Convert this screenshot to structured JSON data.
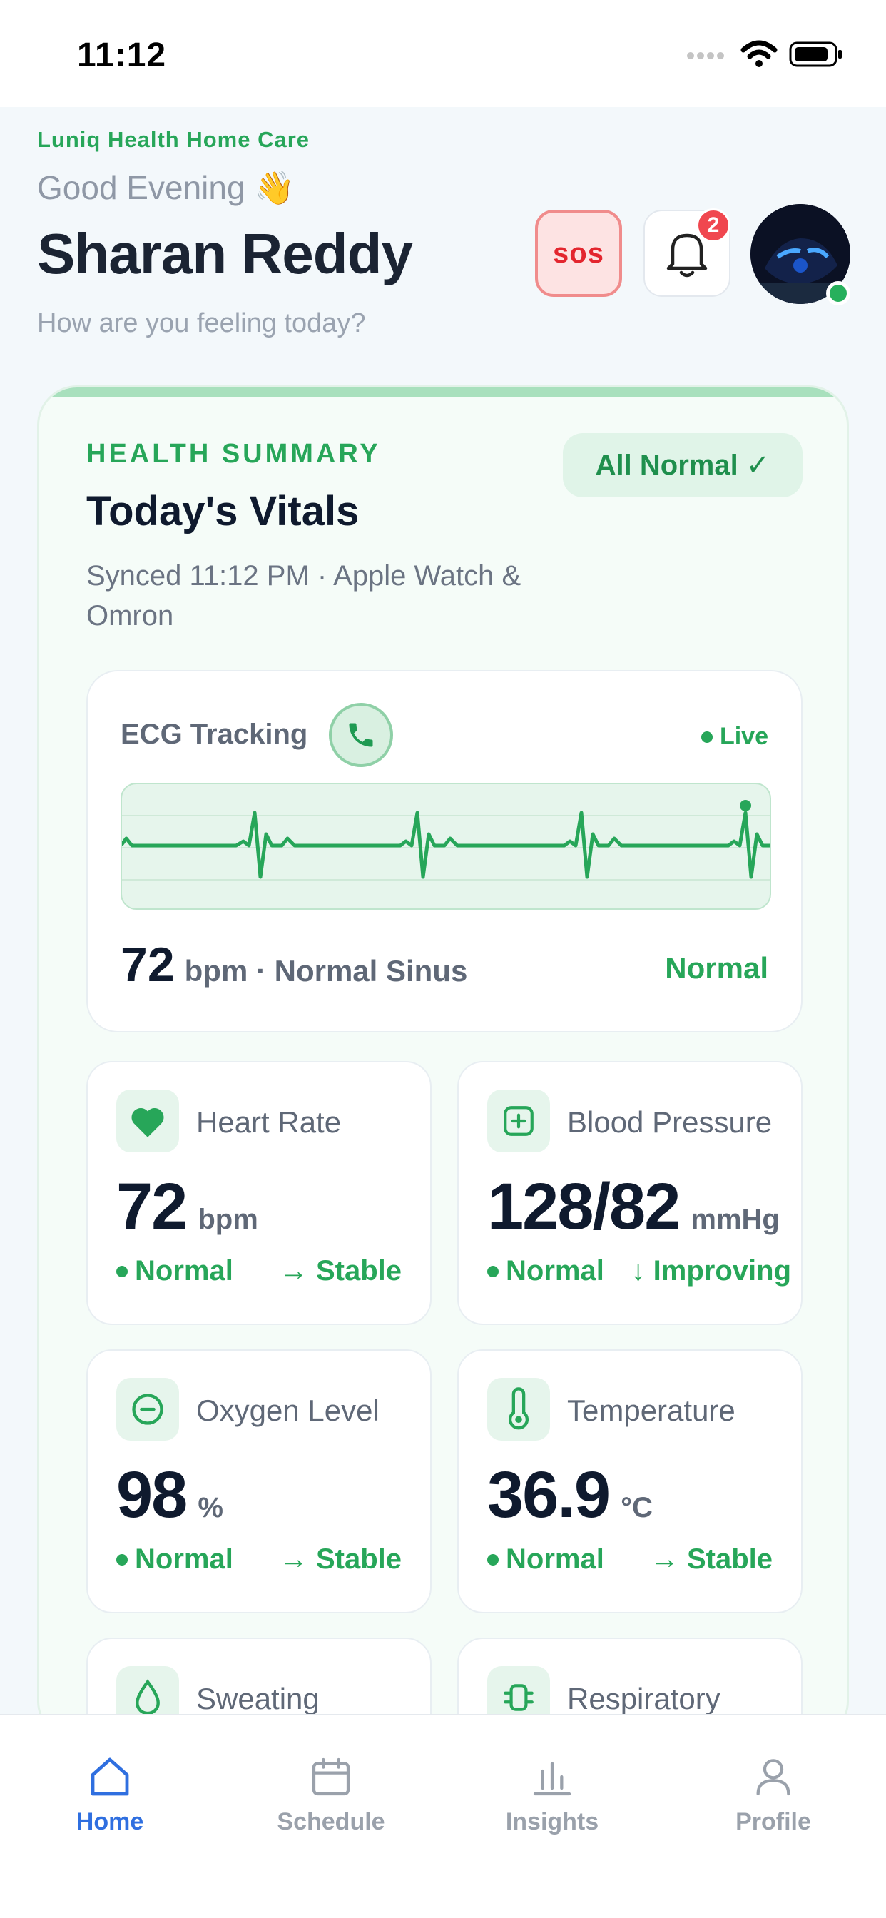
{
  "status_bar": {
    "time": "11:12"
  },
  "header": {
    "brand": "Luniq Health Home Care",
    "greeting": "Good Evening 👋",
    "user_name": "Sharan Reddy",
    "subtitle": "How are you feeling today?",
    "sos_label": "sos",
    "notification_count": "2"
  },
  "summary": {
    "label": "HEALTH SUMMARY",
    "title": "Today's Vitals",
    "sync_text": "Synced 11:12 PM · Apple Watch & Omron",
    "badge": "All Normal ✓"
  },
  "ecg": {
    "title": "ECG Tracking",
    "live_label": "Live",
    "value": "72",
    "detail": "bpm · Normal Sinus",
    "status": "Normal"
  },
  "vitals": [
    {
      "label": "Heart Rate",
      "value": "72",
      "unit": "bpm",
      "status": "Normal",
      "trend": "→ Stable",
      "icon": "heart-icon"
    },
    {
      "label": "Blood Pressure",
      "value": "128/82",
      "unit": "mmHg",
      "status": "Normal",
      "trend": "↓ Improving",
      "icon": "plus-square-icon"
    },
    {
      "label": "Oxygen Level",
      "value": "98",
      "unit": "%",
      "status": "Normal",
      "trend": "→ Stable",
      "icon": "minus-circle-icon"
    },
    {
      "label": "Temperature",
      "value": "36.9",
      "unit": "°C",
      "status": "Normal",
      "trend": "→ Stable",
      "icon": "thermometer-icon"
    },
    {
      "label": "Sweating",
      "icon": "droplet-icon"
    },
    {
      "label": "Respiratory",
      "icon": "lungs-icon"
    }
  ],
  "tabs": [
    {
      "label": "Home",
      "icon": "home-icon",
      "active": true
    },
    {
      "label": "Schedule",
      "icon": "calendar-icon",
      "active": false
    },
    {
      "label": "Insights",
      "icon": "bar-chart-icon",
      "active": false
    },
    {
      "label": "Profile",
      "icon": "user-icon",
      "active": false
    }
  ],
  "colors": {
    "accent_green": "#27a659",
    "sos_red": "#e3262f",
    "tab_active": "#2f6fe0"
  }
}
